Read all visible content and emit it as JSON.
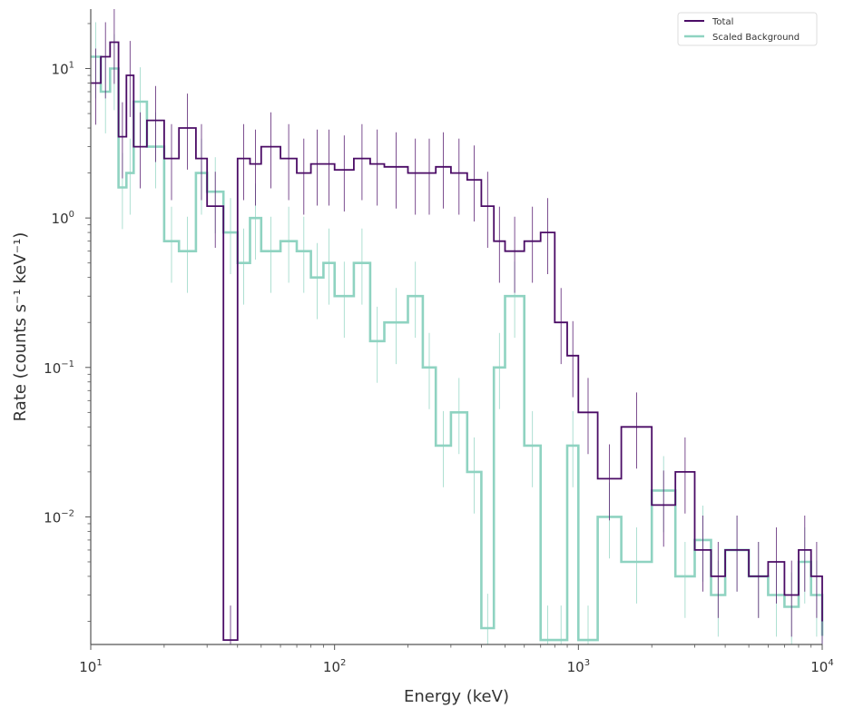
{
  "chart_data": {
    "type": "line",
    "drawstyle": "steps",
    "x_scale": "log",
    "y_scale": "log",
    "xlabel": "Energy (keV)",
    "ylabel": "Rate (counts s⁻¹ keV⁻¹)",
    "xlim": [
      10,
      10000
    ],
    "ylim": [
      0.0014,
      25
    ],
    "x_ticks": [
      {
        "value": 10,
        "base": "10",
        "exp": "1"
      },
      {
        "value": 100,
        "base": "10",
        "exp": "2"
      },
      {
        "value": 1000,
        "base": "10",
        "exp": "3"
      },
      {
        "value": 10000,
        "base": "10",
        "exp": "4"
      }
    ],
    "y_ticks": [
      {
        "value": 0.01,
        "base": "10",
        "exp": "−2"
      },
      {
        "value": 0.1,
        "base": "10",
        "exp": "−1"
      },
      {
        "value": 1,
        "base": "10",
        "exp": "0"
      },
      {
        "value": 10,
        "base": "10",
        "exp": "1"
      }
    ],
    "legend_position": "top-right",
    "series": [
      {
        "name": "Total",
        "color": "#4b0c66",
        "x": [
          10,
          11,
          12,
          13,
          14,
          15,
          17,
          20,
          23,
          27,
          30,
          35,
          40,
          45,
          50,
          60,
          70,
          80,
          90,
          100,
          120,
          140,
          160,
          200,
          230,
          260,
          300,
          350,
          400,
          450,
          500,
          600,
          700,
          800,
          900,
          1000,
          1200,
          1500,
          2000,
          2500,
          3000,
          3500,
          4000,
          5000,
          6000,
          7000,
          8000,
          9000,
          10000
        ],
        "values": [
          8.0,
          12.0,
          15.0,
          3.5,
          9.0,
          3.0,
          4.5,
          2.5,
          4.0,
          2.5,
          1.2,
          0.0015,
          2.5,
          2.3,
          3.0,
          2.5,
          2.0,
          2.3,
          2.3,
          2.1,
          2.5,
          2.3,
          2.2,
          2.0,
          2.0,
          2.2,
          2.0,
          1.8,
          1.2,
          0.7,
          0.6,
          0.7,
          0.8,
          0.2,
          0.12,
          0.05,
          0.018,
          0.04,
          0.012,
          0.02,
          0.006,
          0.004,
          0.006,
          0.004,
          0.005,
          0.003,
          0.006,
          0.004,
          0.002
        ]
      },
      {
        "name": "Scaled  Background",
        "color": "#8fd3c1",
        "x": [
          10,
          11,
          12,
          13,
          14,
          15,
          17,
          20,
          23,
          27,
          30,
          35,
          40,
          45,
          50,
          60,
          70,
          80,
          90,
          100,
          120,
          140,
          160,
          200,
          230,
          260,
          300,
          350,
          400,
          450,
          500,
          600,
          700,
          800,
          900,
          1000,
          1200,
          1500,
          2000,
          2500,
          3000,
          3500,
          4000,
          5000,
          6000,
          7000,
          8000,
          9000,
          10000
        ],
        "values": [
          12.0,
          7.0,
          10.0,
          1.6,
          2.0,
          6.0,
          3.0,
          0.7,
          0.6,
          2.0,
          1.5,
          0.8,
          0.5,
          1.0,
          0.6,
          0.7,
          0.6,
          0.4,
          0.5,
          0.3,
          0.5,
          0.15,
          0.2,
          0.3,
          0.1,
          0.03,
          0.05,
          0.02,
          0.0018,
          0.1,
          0.3,
          0.03,
          0.0015,
          0.0015,
          0.03,
          0.0015,
          0.01,
          0.005,
          0.015,
          0.004,
          0.007,
          0.003,
          0.006,
          0.004,
          0.003,
          0.0025,
          0.005,
          0.003,
          0.0016
        ]
      }
    ]
  }
}
